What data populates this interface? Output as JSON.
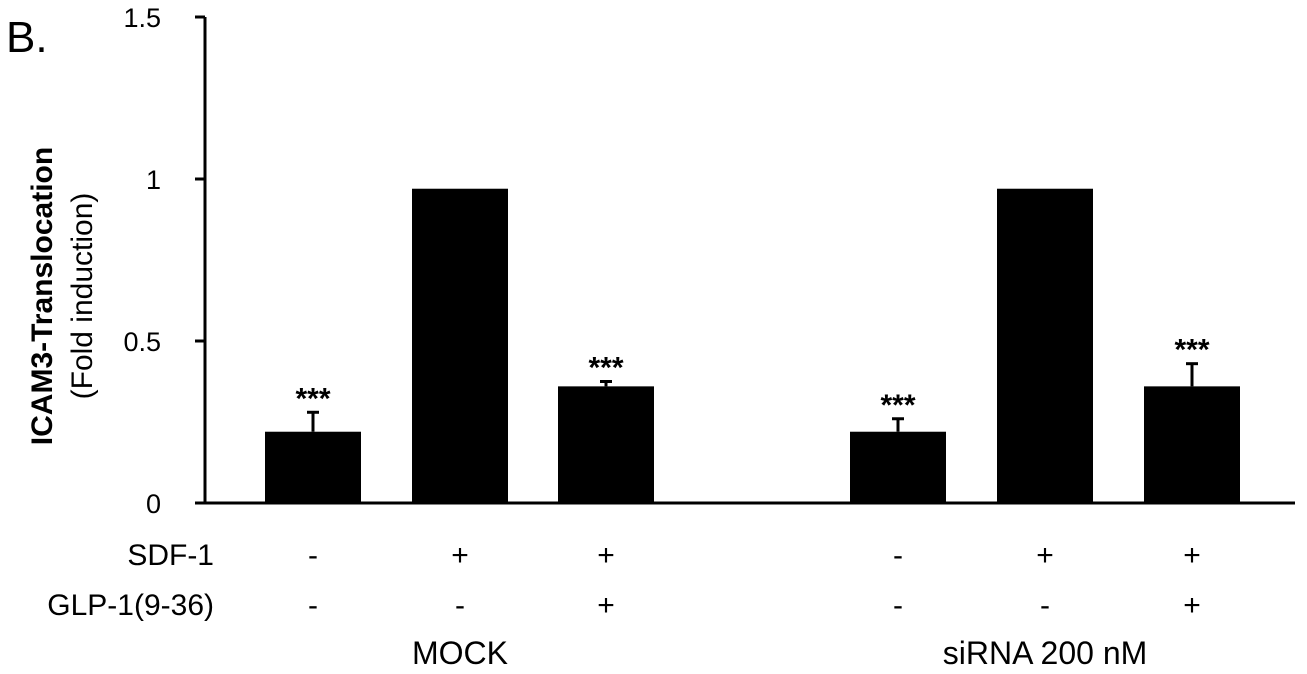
{
  "panel_label": "B.",
  "chart_data": {
    "type": "bar",
    "ylabel": "ICAM3-Translocation",
    "ylabel_sub": "(Fold induction)",
    "ylim": [
      0,
      1.5
    ],
    "yticks": [
      0,
      0.5,
      1,
      1.5
    ],
    "ytick_labels": [
      "0",
      "0.5",
      "1",
      "1.5"
    ],
    "grid": false,
    "bars": [
      {
        "group": "MOCK",
        "value": 0.22,
        "error": 0.06,
        "significance": "***",
        "sdf1": "-",
        "glp1": "-"
      },
      {
        "group": "MOCK",
        "value": 0.97,
        "error": 0.0,
        "significance": "",
        "sdf1": "+",
        "glp1": "-"
      },
      {
        "group": "MOCK",
        "value": 0.36,
        "error": 0.015,
        "significance": "***",
        "sdf1": "+",
        "glp1": "+"
      },
      {
        "group": "siRNA 200 nM",
        "value": 0.22,
        "error": 0.04,
        "significance": "***",
        "sdf1": "-",
        "glp1": "-"
      },
      {
        "group": "siRNA 200 nM",
        "value": 0.97,
        "error": 0.0,
        "significance": "",
        "sdf1": "+",
        "glp1": "-"
      },
      {
        "group": "siRNA 200 nM",
        "value": 0.36,
        "error": 0.07,
        "significance": "***",
        "sdf1": "+",
        "glp1": "+"
      }
    ],
    "condition_rows": [
      {
        "label": "SDF-1",
        "key": "sdf1"
      },
      {
        "label": "GLP-1(9-36)",
        "key": "glp1"
      }
    ],
    "groups": [
      "MOCK",
      "siRNA 200 nM"
    ],
    "bar_color": "#000000"
  }
}
